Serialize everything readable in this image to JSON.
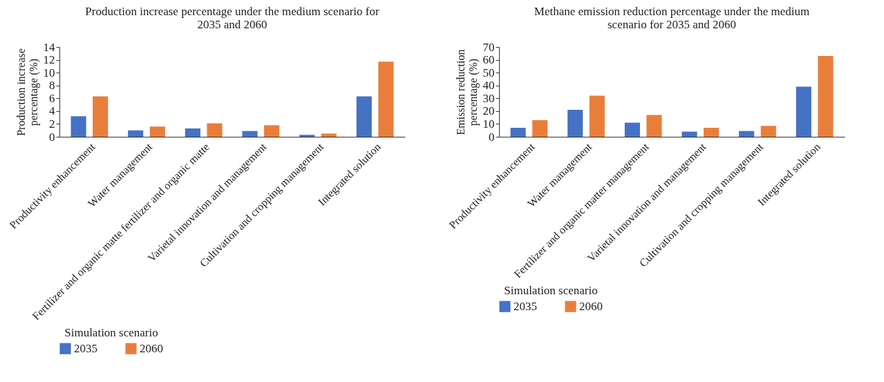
{
  "chart_data": [
    {
      "type": "bar",
      "title": "Production increase percentage under the medium scenario for 2035 and 2060",
      "ylabel": "Production increase percentage (%)",
      "legend_title": "Simulation scenario",
      "legend": "bottom",
      "grid": false,
      "categories": [
        "Productivity enhancement",
        "Water management",
        "Fertilizer and organic matte fertilizer and organic matte",
        "Varietal innovation and management",
        "Cultivation and  cropping management",
        "Integrated solution"
      ],
      "ylim": [
        0,
        14
      ],
      "yticks": [
        0,
        2,
        4,
        6,
        8,
        10,
        12,
        14
      ],
      "series": [
        {
          "name": "2035",
          "color": "#4472c4",
          "values": [
            3.2,
            1.0,
            1.3,
            0.9,
            0.3,
            6.3
          ]
        },
        {
          "name": "2060",
          "color": "#e97e3b",
          "values": [
            6.3,
            1.6,
            2.1,
            1.8,
            0.5,
            11.7
          ]
        }
      ]
    },
    {
      "type": "bar",
      "title": "Methane emission reduction percentage under the medium scenario for 2035 and 2060",
      "ylabel": "Emission reduction percentage (%)",
      "legend_title": "Simulation scenario",
      "legend": "bottom",
      "grid": false,
      "categories": [
        "Productivity enhancement",
        "Water management",
        "Fertilizer and organic matter management",
        "Varietal innovation and management",
        "Cultivation and  cropping management",
        "Integrated solution"
      ],
      "ylim": [
        0,
        70
      ],
      "yticks": [
        0,
        10,
        20,
        30,
        40,
        50,
        60,
        70
      ],
      "series": [
        {
          "name": "2035",
          "color": "#4472c4",
          "values": [
            7,
            21,
            11,
            4,
            4.5,
            39
          ]
        },
        {
          "name": "2060",
          "color": "#e97e3b",
          "values": [
            13,
            32,
            17,
            7,
            8.5,
            63
          ]
        }
      ]
    }
  ]
}
